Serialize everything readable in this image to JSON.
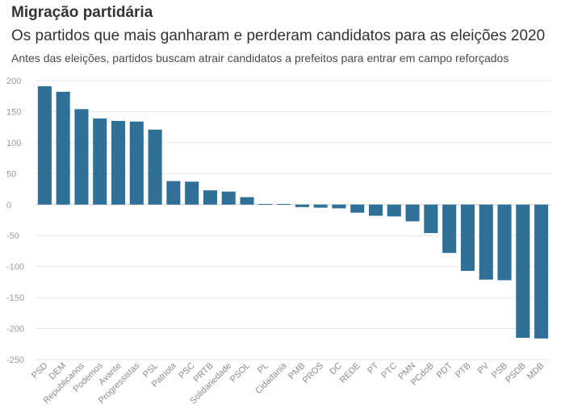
{
  "header": {
    "title": "Migração partidária",
    "subtitle": "Os partidos que mais ganharam e perderam candidatos para as eleições 2020",
    "description": "Antes das eleições, partidos buscam atrair candidatos a prefeitos para entrar em campo reforçados"
  },
  "chart_data": {
    "type": "bar",
    "categories": [
      "PSD",
      "DEM",
      "Republicanos",
      "Podemos",
      "Avante",
      "Progressistas",
      "PSL",
      "Patriota",
      "PSC",
      "PRTB",
      "Solidariedade",
      "PSOL",
      "PL",
      "Cidadania",
      "PMB",
      "PROS",
      "DC",
      "REDE",
      "PT",
      "PTC",
      "PMN",
      "PCdoB",
      "PDT",
      "PTB",
      "PV",
      "PSB",
      "PSDB",
      "MDB"
    ],
    "values": [
      191,
      182,
      154,
      139,
      135,
      134,
      121,
      38,
      37,
      23,
      21,
      12,
      1,
      1,
      -4,
      -5,
      -6,
      -13,
      -18,
      -19,
      -27,
      -46,
      -78,
      -107,
      -121,
      -122,
      -215,
      -216
    ],
    "yticks": [
      200,
      150,
      100,
      50,
      0,
      -50,
      -100,
      -150,
      -200,
      -250
    ],
    "ylim": [
      -250,
      205
    ],
    "grid": true,
    "colors": {
      "bar": "#2e7097",
      "grid": "#e6e6e6",
      "zero": "#cfcfcf"
    }
  }
}
